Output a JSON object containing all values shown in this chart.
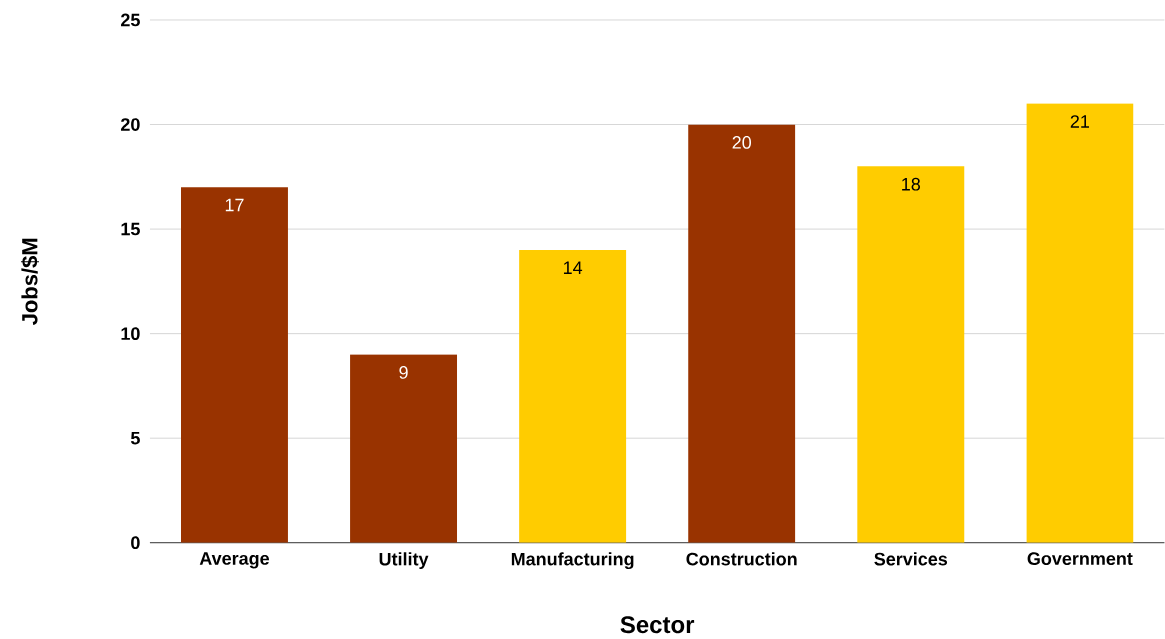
{
  "chart_data": {
    "type": "bar",
    "xlabel": "Sector",
    "ylabel": "Jobs/$M",
    "categories": [
      "Average",
      "Utility",
      "Manufacturing",
      "Construction",
      "Services",
      "Government"
    ],
    "values": [
      17,
      9,
      14,
      20,
      18,
      21
    ],
    "colors": [
      "#993300",
      "#993300",
      "#ffcc00",
      "#993300",
      "#ffcc00",
      "#ffcc00"
    ],
    "ylim": [
      0,
      25
    ],
    "yticks": [
      0,
      5,
      10,
      15,
      20,
      25
    ],
    "grid": "y",
    "data_labels": true
  }
}
